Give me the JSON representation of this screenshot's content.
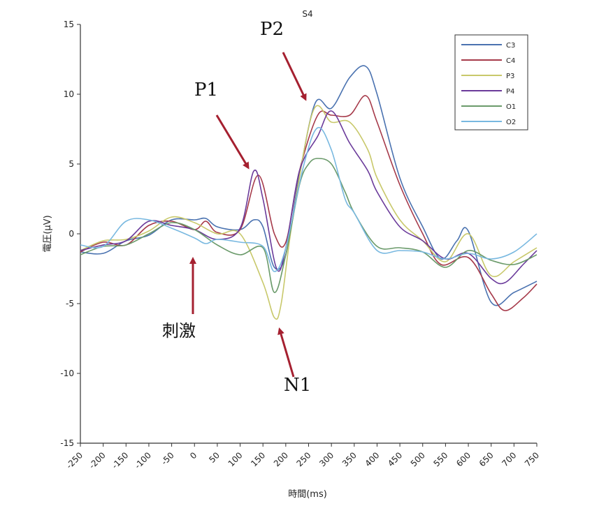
{
  "chart_data": {
    "type": "line",
    "title": "S4",
    "xlabel": "時間(ms)",
    "ylabel": "電圧(μV)",
    "xlim": [
      -250,
      750
    ],
    "ylim": [
      -15,
      15
    ],
    "x_ticks": [
      -250,
      -200,
      -150,
      -100,
      -50,
      0,
      50,
      100,
      150,
      200,
      250,
      300,
      350,
      400,
      450,
      500,
      550,
      600,
      650,
      700,
      750
    ],
    "y_ticks": [
      -15,
      -10,
      -5,
      0,
      5,
      10,
      15
    ],
    "grid": false,
    "legend_position": "top-right",
    "series": [
      {
        "name": "C3",
        "color": "#4a72b0",
        "x": [
          -250,
          -200,
          -150,
          -100,
          -50,
          0,
          25,
          50,
          100,
          130,
          150,
          175,
          200,
          230,
          265,
          300,
          340,
          375,
          400,
          450,
          500,
          540,
          575,
          600,
          650,
          700,
          750
        ],
        "y": [
          -1.3,
          -1.4,
          -0.5,
          -0.1,
          1.0,
          1.0,
          1.1,
          0.5,
          0.3,
          1.0,
          0.5,
          -2.4,
          -1.5,
          4.2,
          9.4,
          9.0,
          11.2,
          12.0,
          10.0,
          4.0,
          0.5,
          -1.8,
          -0.5,
          0.2,
          -4.9,
          -4.2,
          -3.4
        ]
      },
      {
        "name": "C4",
        "color": "#a63a4a",
        "x": [
          -250,
          -200,
          -150,
          -100,
          -50,
          0,
          25,
          50,
          100,
          140,
          175,
          200,
          230,
          270,
          300,
          340,
          375,
          400,
          450,
          500,
          540,
          600,
          650,
          680,
          720,
          750
        ],
        "y": [
          -1.3,
          -0.6,
          -0.8,
          0.6,
          0.9,
          0.3,
          0.9,
          0.1,
          0.3,
          4.2,
          0.0,
          -0.6,
          4.5,
          8.5,
          8.5,
          8.5,
          9.9,
          8.0,
          3.5,
          0.0,
          -2.2,
          -1.7,
          -4.3,
          -5.5,
          -4.6,
          -3.6
        ]
      },
      {
        "name": "P3",
        "color": "#c8c86a",
        "x": [
          -250,
          -200,
          -150,
          -100,
          -50,
          0,
          50,
          100,
          150,
          175,
          190,
          215,
          260,
          300,
          340,
          380,
          400,
          450,
          500,
          550,
          600,
          650,
          700,
          750
        ],
        "y": [
          -1.2,
          -0.5,
          -0.4,
          0.2,
          1.2,
          0.8,
          0.0,
          0.0,
          -3.5,
          -6.0,
          -5.0,
          1.0,
          8.8,
          8.0,
          8.0,
          6.0,
          4.0,
          1.0,
          -0.5,
          -2.0,
          0.0,
          -3.0,
          -2.0,
          -1.0
        ]
      },
      {
        "name": "P4",
        "color": "#6a3a9a",
        "x": [
          -250,
          -200,
          -150,
          -100,
          -50,
          0,
          50,
          100,
          130,
          150,
          180,
          200,
          230,
          270,
          300,
          340,
          380,
          400,
          450,
          500,
          550,
          600,
          650,
          680,
          720,
          750
        ],
        "y": [
          -1.2,
          -0.8,
          -0.5,
          0.9,
          0.6,
          0.3,
          -0.4,
          0.4,
          4.5,
          2.5,
          -2.5,
          -1.0,
          4.5,
          7.0,
          8.8,
          6.5,
          4.5,
          3.0,
          0.5,
          -0.5,
          -1.8,
          -1.4,
          -3.2,
          -3.5,
          -2.2,
          -1.2
        ]
      },
      {
        "name": "O1",
        "color": "#6a9a6a",
        "x": [
          -250,
          -200,
          -150,
          -100,
          -50,
          0,
          50,
          100,
          150,
          175,
          200,
          230,
          250,
          270,
          300,
          330,
          350,
          400,
          450,
          500,
          550,
          600,
          650,
          700,
          750
        ],
        "y": [
          -1.5,
          -0.9,
          -0.8,
          0.0,
          0.8,
          0.3,
          -0.8,
          -1.5,
          -1.0,
          -4.2,
          -1.5,
          3.5,
          5.0,
          5.4,
          5.0,
          3.0,
          1.5,
          -0.9,
          -1.0,
          -1.3,
          -2.4,
          -1.2,
          -1.9,
          -2.2,
          -1.5
        ]
      },
      {
        "name": "O2",
        "color": "#78b8e0",
        "x": [
          -250,
          -200,
          -150,
          -100,
          -50,
          0,
          25,
          50,
          100,
          150,
          175,
          200,
          240,
          270,
          300,
          330,
          350,
          400,
          450,
          500,
          550,
          600,
          650,
          700,
          750
        ],
        "y": [
          -0.8,
          -0.9,
          0.9,
          1.0,
          0.4,
          -0.3,
          -0.7,
          -0.4,
          -0.6,
          -0.9,
          -2.7,
          -1.0,
          5.0,
          7.6,
          6.0,
          2.5,
          1.5,
          -1.2,
          -1.2,
          -1.3,
          -1.8,
          -1.4,
          -1.8,
          -1.3,
          0.0
        ]
      }
    ],
    "annotations": [
      {
        "label": "P1",
        "x": 120,
        "y": 4.5,
        "kind": "arrow-down-right"
      },
      {
        "label": "P2",
        "x": 240,
        "y": 9.5,
        "kind": "arrow-down-right"
      },
      {
        "label": "N1",
        "x": 185,
        "y": -6.8,
        "kind": "arrow-up"
      },
      {
        "label": "刺激",
        "x": 0,
        "y": -1.5,
        "kind": "arrow-up"
      }
    ]
  }
}
